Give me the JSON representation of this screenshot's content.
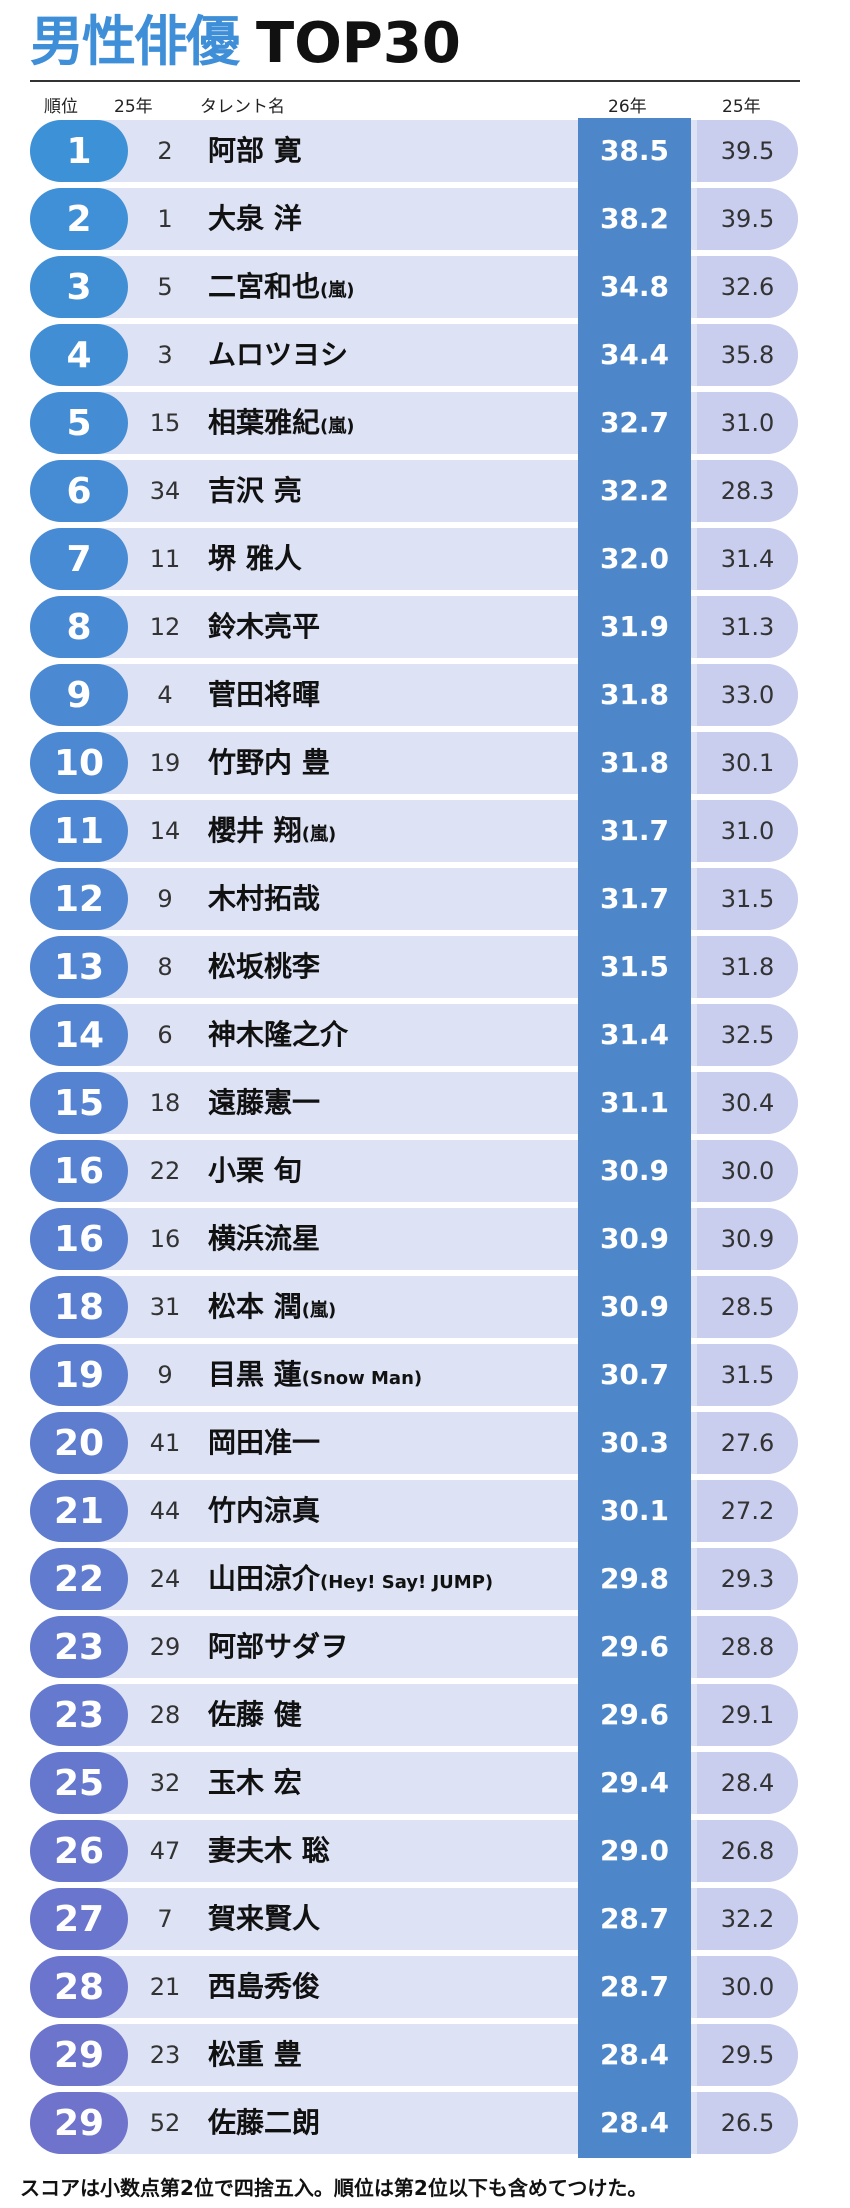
{
  "title": "男性俳優",
  "title_en": "TOP30",
  "header": [
    "順位",
    "25年",
    "タレント名",
    "26年",
    "25年"
  ],
  "rows": [
    {
      "rank": "1",
      "prev": "2",
      "name": "阿部 寛",
      "score26": "38.5",
      "score25": "39.5"
    },
    {
      "rank": "2",
      "prev": "1",
      "name": "大泉 洋",
      "score26": "38.2",
      "score25": "39.5"
    },
    {
      "rank": "3",
      "prev": "5",
      "name": "二宮和也",
      "group": "(嵐)",
      "score26": "34.8",
      "score25": "32.6"
    },
    {
      "rank": "4",
      "prev": "3",
      "name": "ムロツヨシ",
      "score26": "34.4",
      "score25": "35.8"
    },
    {
      "rank": "5",
      "prev": "15",
      "name": "相葉雅紀",
      "group": "(嵐)",
      "score26": "32.7",
      "score25": "31.0"
    },
    {
      "rank": "6",
      "prev": "34",
      "name": "吉沢 亮",
      "score26": "32.2",
      "score25": "28.3"
    },
    {
      "rank": "7",
      "prev": "11",
      "name": "堺 雅人",
      "score26": "32.0",
      "score25": "31.4"
    },
    {
      "rank": "8",
      "prev": "12",
      "name": "鈴木亮平",
      "score26": "31.9",
      "score25": "31.3"
    },
    {
      "rank": "9",
      "prev": "4",
      "name": "菅田将暉",
      "score26": "31.8",
      "score25": "33.0"
    },
    {
      "rank": "10",
      "prev": "19",
      "name": "竹野内 豊",
      "score26": "31.8",
      "score25": "30.1"
    },
    {
      "rank": "11",
      "prev": "14",
      "name": "櫻井 翔",
      "group": "(嵐)",
      "score26": "31.7",
      "score25": "31.0"
    },
    {
      "rank": "12",
      "prev": "9",
      "name": "木村拓哉",
      "score26": "31.7",
      "score25": "31.5"
    },
    {
      "rank": "13",
      "prev": "8",
      "name": "松坂桃李",
      "score26": "31.5",
      "score25": "31.8"
    },
    {
      "rank": "14",
      "prev": "6",
      "name": "神木隆之介",
      "score26": "31.4",
      "score25": "32.5"
    },
    {
      "rank": "15",
      "prev": "18",
      "name": "遠藤憲一",
      "score26": "31.1",
      "score25": "30.4"
    },
    {
      "rank": "16",
      "prev": "22",
      "name": "小栗 旬",
      "score26": "30.9",
      "score25": "30.0"
    },
    {
      "rank": "16",
      "prev": "16",
      "name": "横浜流星",
      "score26": "30.9",
      "score25": "30.9"
    },
    {
      "rank": "18",
      "prev": "31",
      "name": "松本 潤",
      "group": "(嵐)",
      "score26": "30.9",
      "score25": "28.5"
    },
    {
      "rank": "19",
      "prev": "9",
      "name": "目黒 蓮",
      "group": "(Snow Man)",
      "score26": "30.7",
      "score25": "31.5"
    },
    {
      "rank": "20",
      "prev": "41",
      "name": "岡田准一",
      "score26": "30.3",
      "score25": "27.6"
    },
    {
      "rank": "21",
      "prev": "44",
      "name": "竹内涼真",
      "score26": "30.1",
      "score25": "27.2"
    },
    {
      "rank": "22",
      "prev": "24",
      "name": "山田涼介",
      "group": "(Hey! Say! JUMP)",
      "score26": "29.8",
      "score25": "29.3"
    },
    {
      "rank": "23",
      "prev": "29",
      "name": "阿部サダヲ",
      "score26": "29.6",
      "score25": "28.8"
    },
    {
      "rank": "23",
      "prev": "28",
      "name": "佐藤 健",
      "score26": "29.6",
      "score25": "29.1"
    },
    {
      "rank": "25",
      "prev": "32",
      "name": "玉木 宏",
      "score26": "29.4",
      "score25": "28.4"
    },
    {
      "rank": "26",
      "prev": "47",
      "name": "妻夫木 聡",
      "score26": "29.0",
      "score25": "26.8"
    },
    {
      "rank": "27",
      "prev": "7",
      "name": "賀来賢人",
      "score26": "28.7",
      "score25": "32.2"
    },
    {
      "rank": "28",
      "prev": "21",
      "name": "西島秀俊",
      "score26": "28.7",
      "score25": "30.0"
    },
    {
      "rank": "29",
      "prev": "23",
      "name": "松重 豊",
      "score26": "28.4",
      "score25": "29.5"
    },
    {
      "rank": "29",
      "prev": "52",
      "name": "佐藤二朗",
      "score26": "28.4",
      "score25": "26.5"
    }
  ],
  "footer": "スコアは小数点第2位で四捨五入。順位は第2位以下も含めてつけた。"
}
